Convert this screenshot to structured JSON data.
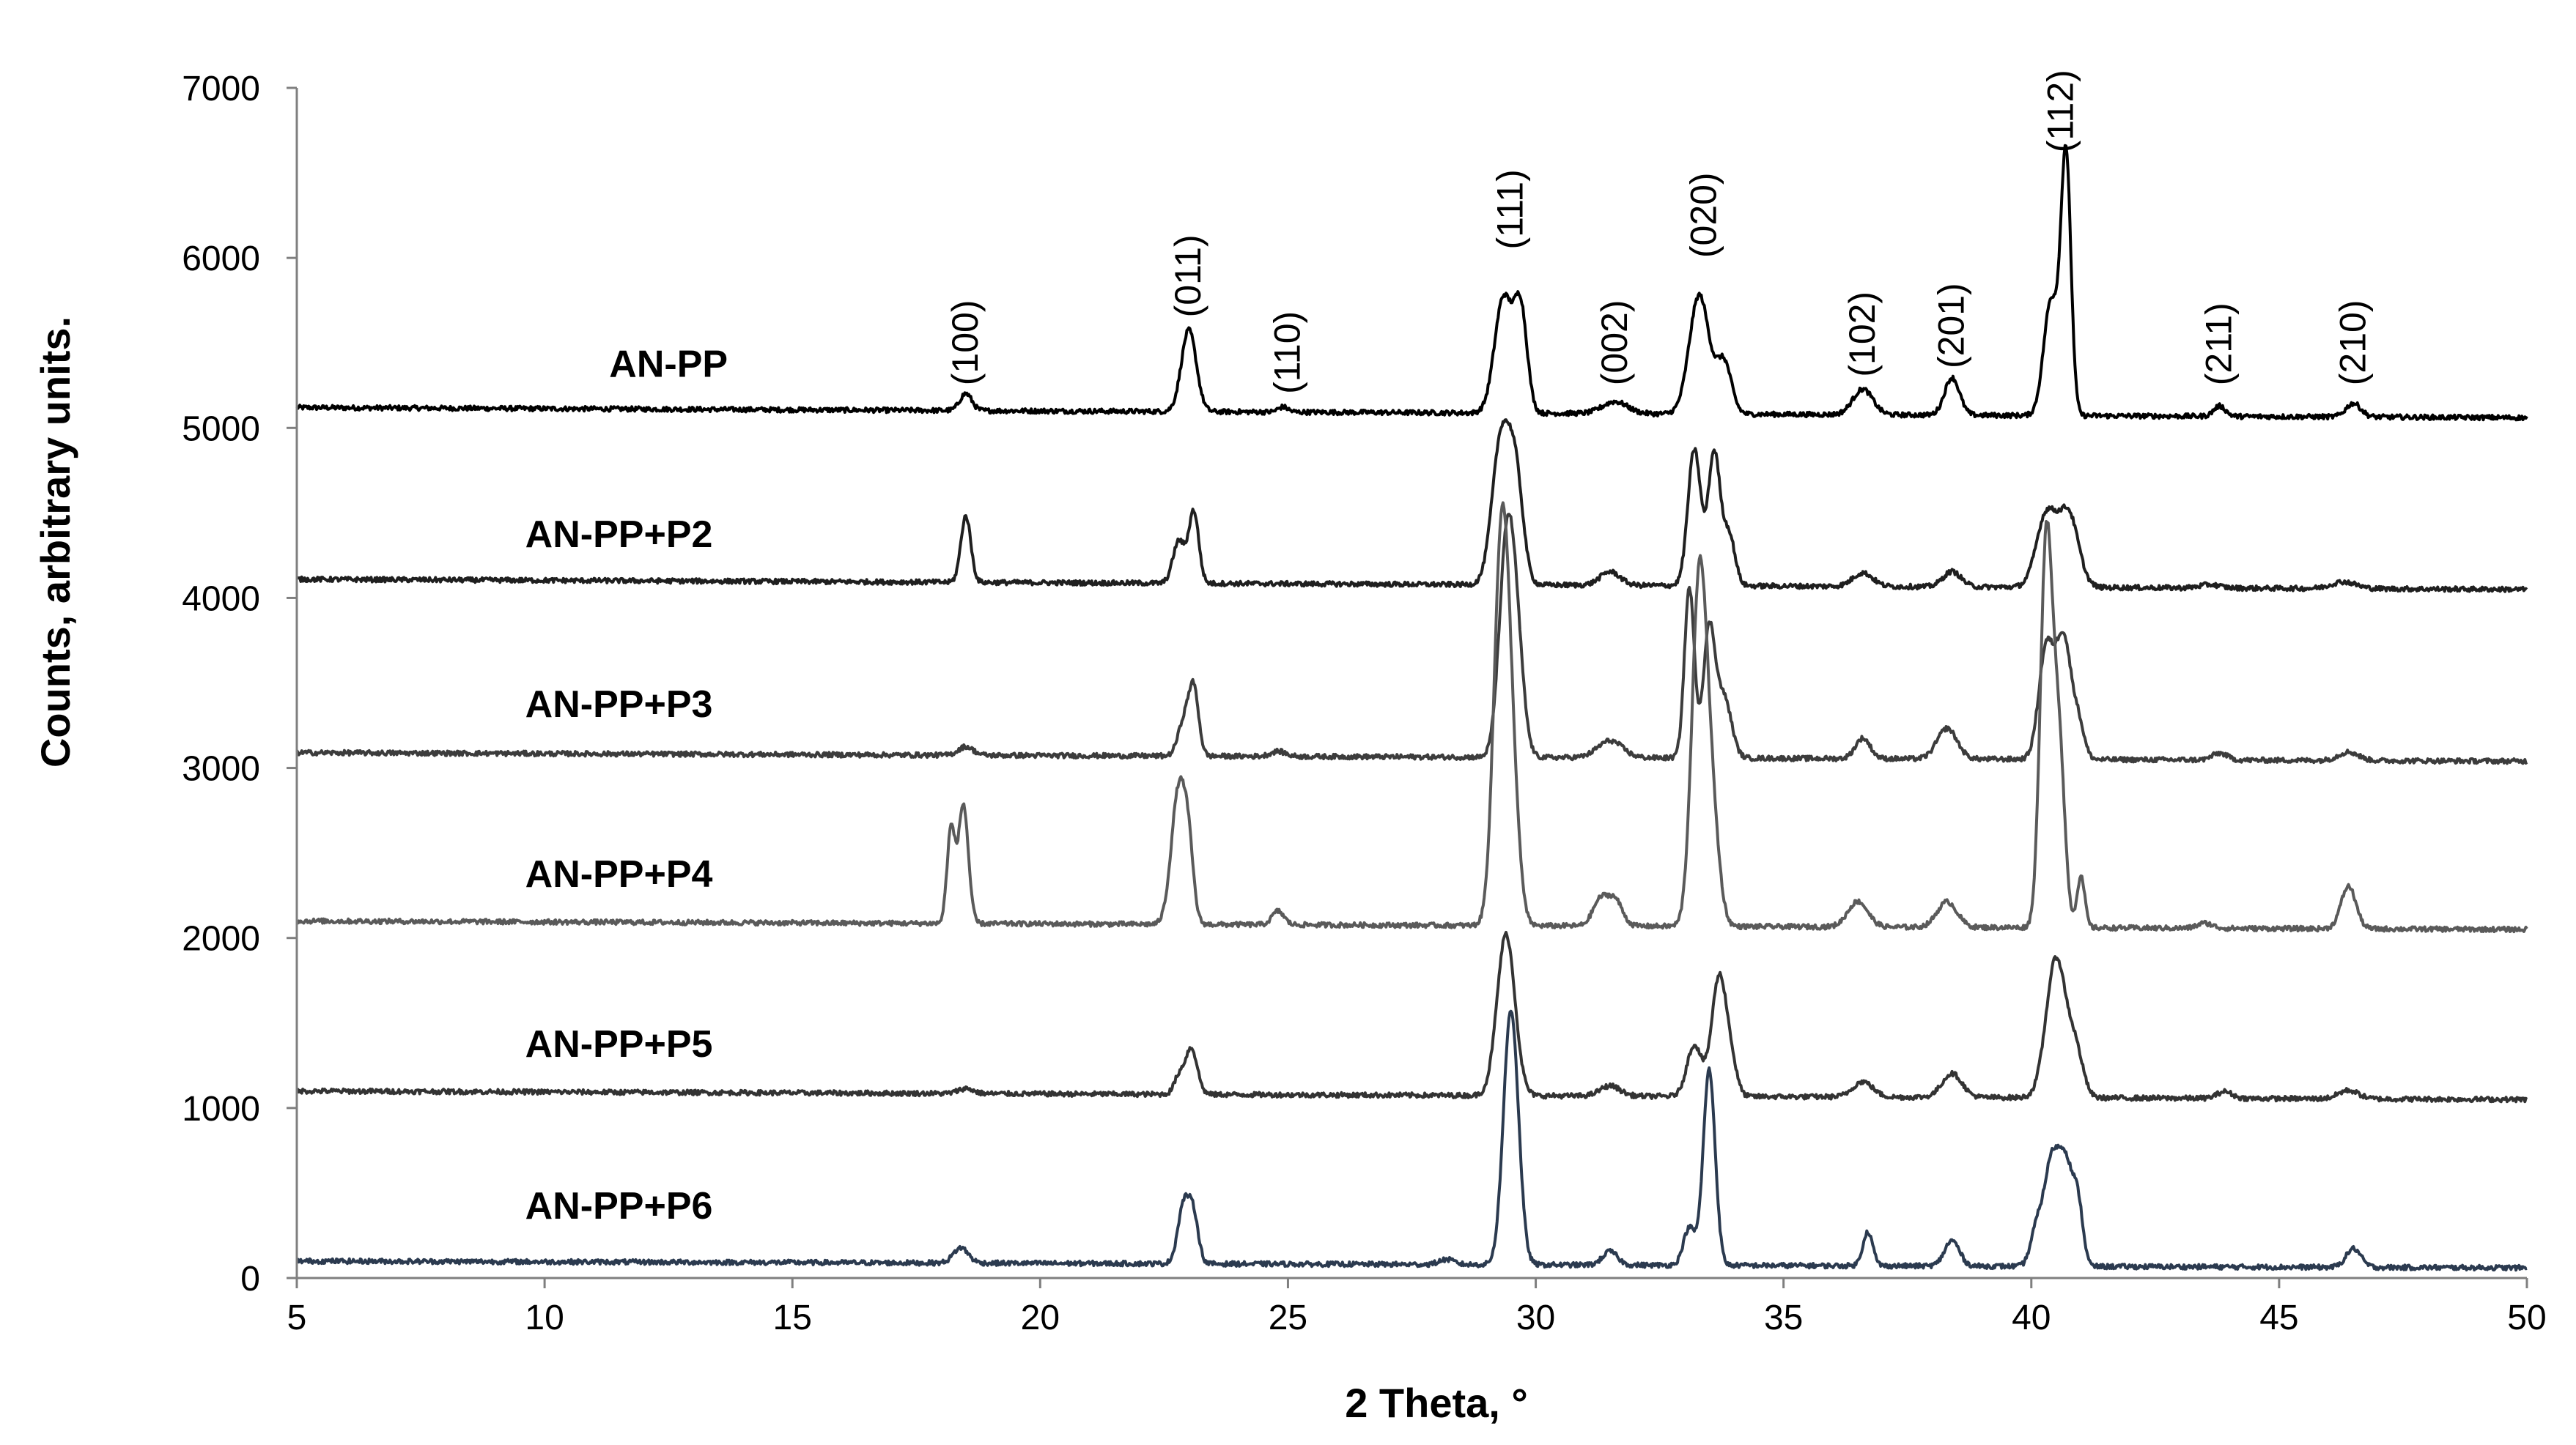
{
  "chart_data": {
    "type": "line",
    "title": "",
    "xlabel": "2 Theta, °",
    "ylabel": "Counts, arbitrary units.",
    "xlim": [
      5,
      50
    ],
    "ylim": [
      0,
      7000
    ],
    "xticks": [
      "5",
      "10",
      "15",
      "20",
      "25",
      "30",
      "35",
      "40",
      "45",
      "50"
    ],
    "yticks": [
      "0",
      "1000",
      "2000",
      "3000",
      "4000",
      "5000",
      "6000",
      "7000"
    ],
    "grid": false,
    "legend": "inline labels at left of each curve",
    "peak_labels": [
      {
        "text": "(100)",
        "x": 18.5,
        "y": 5250
      },
      {
        "text": "(011)",
        "x": 23.0,
        "y": 5650
      },
      {
        "text": "(110)",
        "x": 25.0,
        "y": 5200
      },
      {
        "text": "(111)",
        "x": 29.5,
        "y": 6050
      },
      {
        "text": "(002)",
        "x": 31.6,
        "y": 5250
      },
      {
        "text": "(020)",
        "x": 33.4,
        "y": 6000
      },
      {
        "text": "(102)",
        "x": 36.6,
        "y": 5300
      },
      {
        "text": "(201)",
        "x": 38.4,
        "y": 5350
      },
      {
        "text": "(112)",
        "x": 40.6,
        "y": 6620
      },
      {
        "text": "(211)",
        "x": 43.8,
        "y": 5250
      },
      {
        "text": "(210)",
        "x": 46.5,
        "y": 5250
      }
    ],
    "series": [
      {
        "name": "AN-PP",
        "color": "#000000",
        "label_pos": [
          12.5,
          5300
        ],
        "baseline": [
          5120,
          5060
        ],
        "peaks": [
          [
            18.5,
            100,
            0.12
          ],
          [
            23.0,
            480,
            0.15
          ],
          [
            24.9,
            30,
            0.1
          ],
          [
            29.35,
            680,
            0.18
          ],
          [
            29.7,
            580,
            0.13
          ],
          [
            31.6,
            70,
            0.25
          ],
          [
            33.3,
            700,
            0.2
          ],
          [
            33.8,
            300,
            0.15
          ],
          [
            36.6,
            150,
            0.2
          ],
          [
            38.4,
            220,
            0.15
          ],
          [
            40.4,
            680,
            0.15
          ],
          [
            40.7,
            1500,
            0.1
          ],
          [
            43.8,
            60,
            0.12
          ],
          [
            46.5,
            80,
            0.15
          ]
        ]
      },
      {
        "name": "AN-PP+P2",
        "color": "#1f1f1f",
        "label_pos": [
          11.5,
          4300
        ],
        "baseline": [
          4110,
          4050
        ],
        "peaks": [
          [
            18.5,
            390,
            0.1
          ],
          [
            22.8,
            250,
            0.12
          ],
          [
            23.1,
            420,
            0.1
          ],
          [
            29.3,
            850,
            0.18
          ],
          [
            29.6,
            580,
            0.15
          ],
          [
            31.5,
            80,
            0.2
          ],
          [
            33.2,
            800,
            0.13
          ],
          [
            33.6,
            780,
            0.12
          ],
          [
            33.9,
            300,
            0.12
          ],
          [
            36.6,
            80,
            0.2
          ],
          [
            38.4,
            90,
            0.18
          ],
          [
            40.3,
            420,
            0.2
          ],
          [
            40.75,
            430,
            0.2
          ],
          [
            43.6,
            20,
            0.2
          ],
          [
            46.3,
            40,
            0.25
          ]
        ]
      },
      {
        "name": "AN-PP+P3",
        "color": "#3c3c3c",
        "label_pos": [
          11.5,
          3300
        ],
        "baseline": [
          3090,
          3040
        ],
        "peaks": [
          [
            18.5,
            50,
            0.15
          ],
          [
            22.9,
            200,
            0.12
          ],
          [
            23.1,
            380,
            0.1
          ],
          [
            24.8,
            30,
            0.15
          ],
          [
            29.4,
            1100,
            0.15
          ],
          [
            29.6,
            650,
            0.15
          ],
          [
            31.5,
            100,
            0.25
          ],
          [
            33.1,
            1000,
            0.1
          ],
          [
            33.5,
            750,
            0.12
          ],
          [
            33.8,
            350,
            0.15
          ],
          [
            36.6,
            120,
            0.15
          ],
          [
            38.3,
            180,
            0.2
          ],
          [
            40.3,
            650,
            0.15
          ],
          [
            40.65,
            700,
            0.15
          ],
          [
            40.95,
            200,
            0.12
          ],
          [
            43.8,
            40,
            0.15
          ],
          [
            46.4,
            50,
            0.2
          ]
        ]
      },
      {
        "name": "AN-PP+P4",
        "color": "#5a5a5a",
        "label_pos": [
          11.5,
          2300
        ],
        "baseline": [
          2100,
          2050
        ],
        "peaks": [
          [
            18.2,
            550,
            0.08
          ],
          [
            18.45,
            700,
            0.1
          ],
          [
            22.8,
            800,
            0.15
          ],
          [
            23.0,
            300,
            0.1
          ],
          [
            24.8,
            80,
            0.12
          ],
          [
            29.3,
            2100,
            0.15
          ],
          [
            29.5,
            800,
            0.15
          ],
          [
            31.3,
            150,
            0.15
          ],
          [
            31.6,
            150,
            0.15
          ],
          [
            33.3,
            2000,
            0.15
          ],
          [
            33.55,
            600,
            0.15
          ],
          [
            36.5,
            150,
            0.2
          ],
          [
            38.3,
            150,
            0.2
          ],
          [
            40.3,
            2250,
            0.12
          ],
          [
            40.55,
            1100,
            0.12
          ],
          [
            41.0,
            300,
            0.08
          ],
          [
            43.5,
            30,
            0.15
          ],
          [
            46.4,
            250,
            0.15
          ]
        ]
      },
      {
        "name": "AN-PP+P5",
        "color": "#333333",
        "label_pos": [
          11.5,
          1300
        ],
        "baseline": [
          1100,
          1050
        ],
        "peaks": [
          [
            18.5,
            30,
            0.15
          ],
          [
            22.8,
            100,
            0.1
          ],
          [
            23.05,
            270,
            0.12
          ],
          [
            29.4,
            950,
            0.18
          ],
          [
            31.5,
            60,
            0.2
          ],
          [
            33.2,
            300,
            0.15
          ],
          [
            33.7,
            700,
            0.15
          ],
          [
            33.95,
            150,
            0.12
          ],
          [
            36.6,
            90,
            0.2
          ],
          [
            38.4,
            140,
            0.2
          ],
          [
            40.5,
            820,
            0.2
          ],
          [
            40.9,
            250,
            0.15
          ],
          [
            43.9,
            40,
            0.15
          ],
          [
            46.4,
            50,
            0.2
          ]
        ]
      },
      {
        "name": "AN-PP+P6",
        "color": "#2b3a4f",
        "label_pos": [
          11.5,
          350
        ],
        "baseline": [
          100,
          60
        ],
        "peaks": [
          [
            18.4,
            90,
            0.15
          ],
          [
            22.9,
            350,
            0.12
          ],
          [
            23.1,
            250,
            0.1
          ],
          [
            28.2,
            30,
            0.15
          ],
          [
            29.5,
            1500,
            0.15
          ],
          [
            31.5,
            80,
            0.15
          ],
          [
            33.1,
            220,
            0.12
          ],
          [
            33.5,
            1150,
            0.12
          ],
          [
            36.7,
            200,
            0.1
          ],
          [
            38.4,
            150,
            0.15
          ],
          [
            40.1,
            200,
            0.12
          ],
          [
            40.4,
            580,
            0.15
          ],
          [
            40.7,
            580,
            0.15
          ],
          [
            40.95,
            300,
            0.1
          ],
          [
            46.5,
            110,
            0.15
          ]
        ]
      }
    ]
  }
}
